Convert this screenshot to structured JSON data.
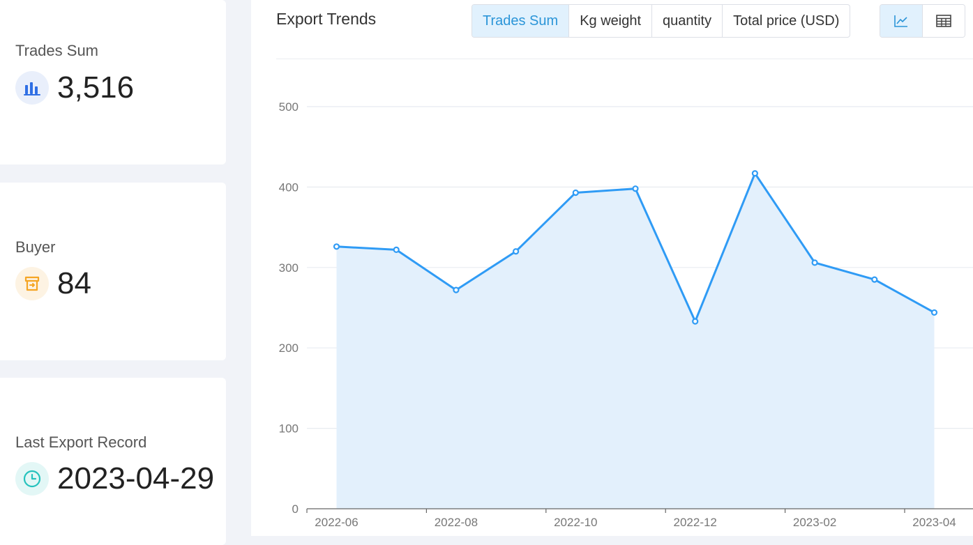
{
  "stats": {
    "trades_sum": {
      "label": "Trades Sum",
      "value": "3,516",
      "icon": "bar-chart-icon",
      "icon_color": "#2f6fe4",
      "icon_bg": "#e9effb"
    },
    "buyer": {
      "label": "Buyer",
      "value": "84",
      "icon": "storefront-icon",
      "icon_color": "#f5a524",
      "icon_bg": "#fdf3e3"
    },
    "last_export": {
      "label": "Last Export Record",
      "value": "2023-04-29",
      "icon": "clock-icon",
      "icon_color": "#25c2bd",
      "icon_bg": "#e3f7f6"
    }
  },
  "chart_panel": {
    "title": "Export Trends",
    "tabs": [
      {
        "label": "Trades Sum",
        "active": true
      },
      {
        "label": "Kg weight",
        "active": false
      },
      {
        "label": "quantity",
        "active": false
      },
      {
        "label": "Total price (USD)",
        "active": false
      }
    ],
    "view_buttons": [
      {
        "icon": "line-chart-icon",
        "active": true
      },
      {
        "icon": "table-icon",
        "active": false
      }
    ]
  },
  "colors": {
    "line": "#2f9bf5",
    "area": "#e3f0fc",
    "active_tab_bg": "#e1f1fd",
    "active_tab_text": "#2b95d8"
  },
  "chart_data": {
    "type": "area",
    "x": [
      "2022-06",
      "2022-07",
      "2022-08",
      "2022-09",
      "2022-10",
      "2022-11",
      "2022-12",
      "2023-01",
      "2023-02",
      "2023-03",
      "2023-04"
    ],
    "values": [
      326,
      322,
      272,
      320,
      393,
      398,
      233,
      417,
      306,
      285,
      244
    ],
    "x_tick_labels": [
      "2022-06",
      "2022-08",
      "2022-10",
      "2022-12",
      "2023-02",
      "2023-04"
    ],
    "y_ticks": [
      0,
      100,
      200,
      300,
      400,
      500
    ],
    "ylim": [
      0,
      500
    ],
    "title": "",
    "xlabel": "",
    "ylabel": "",
    "grid": true
  }
}
